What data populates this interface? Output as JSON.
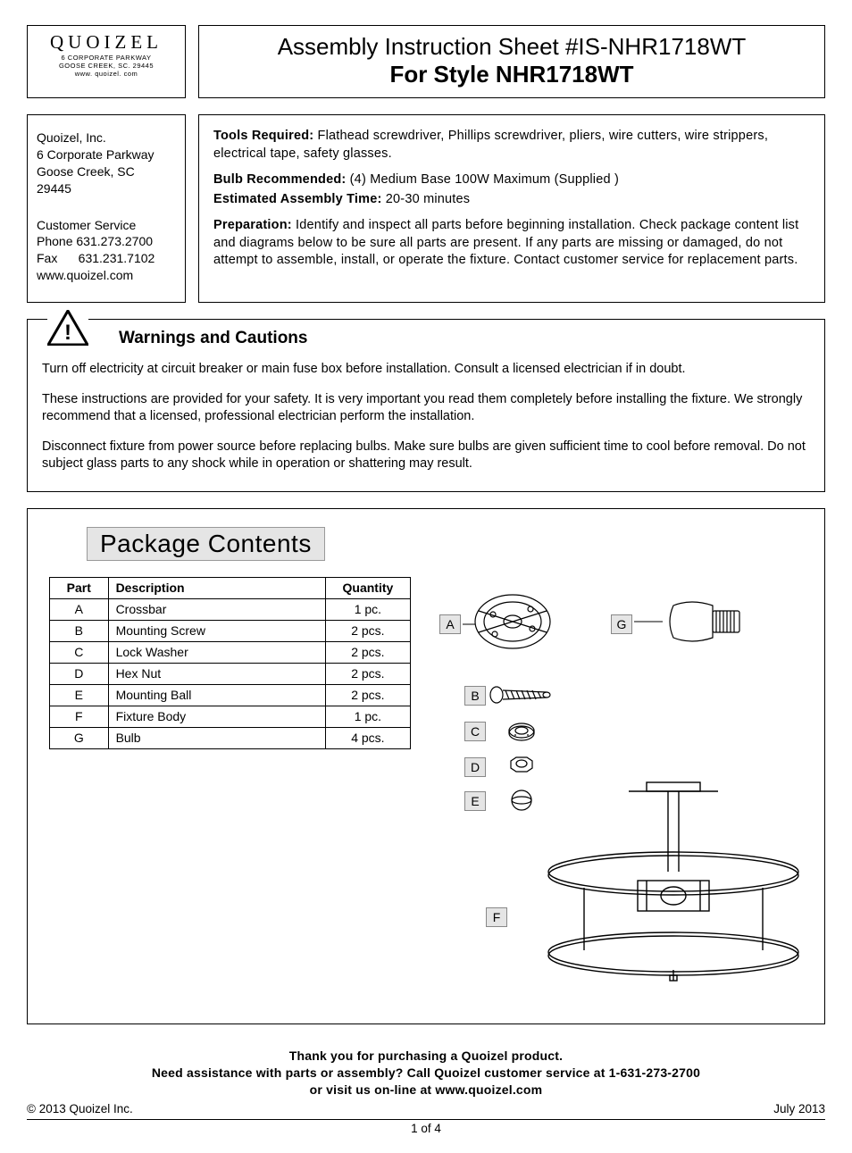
{
  "logo": {
    "brand": "QUOIZEL",
    "line1": "6 CORPORATE PARKWAY",
    "line2": "GOOSE CREEK, SC. 29445",
    "line3": "www. quoizel. com"
  },
  "title": {
    "line1": "Assembly Instruction Sheet #IS-NHR1718WT",
    "line2": "For Style NHR1718WT"
  },
  "address": {
    "company": "Quoizel, Inc.",
    "street": "6 Corporate Parkway",
    "city": "Goose Creek, SC",
    "zip": "29445",
    "cs_label": "Customer  Service",
    "phone": "Phone  631.273.2700",
    "fax": "Fax      631.231.7102",
    "web": "www.quoizel.com"
  },
  "info": {
    "tools_label": "Tools Required: ",
    "tools_text": "Flathead screwdriver, Phillips screwdriver, pliers, wire cutters, wire strippers, electrical tape, safety glasses.",
    "bulb_label": "Bulb Recommended:  ",
    "bulb_text": "(4) Medium Base 100W Maximum (Supplied )",
    "time_label": "Estimated Assembly Time: ",
    "time_text": "20-30 minutes",
    "prep_label": "Preparation: ",
    "prep_text": "Identify and inspect all parts before beginning installation. Check package content list and diagrams below to be sure all parts are present. If any parts are missing or damaged, do not attempt to assemble, install, or operate the fixture. Contact customer service for replacement parts."
  },
  "warnings": {
    "title": "Warnings and Cautions",
    "p1": "Turn off electricity at circuit breaker or main fuse box before installation. Consult a licensed electrician if in doubt.",
    "p2": "These instructions are provided for your safety. It is very important you read them completely before installing the fixture. We strongly recommend that a licensed, professional electrician perform the installation.",
    "p3": "Disconnect fixture from power source before replacing bulbs. Make sure bulbs are given sufficient time to cool before removal. Do not subject glass parts to any shock while in operation or shattering may result."
  },
  "package": {
    "title": "Package Contents",
    "headers": {
      "part": "Part",
      "desc": "Description",
      "qty": "Quantity"
    },
    "rows": [
      {
        "part": "A",
        "desc": "Crossbar",
        "qty": "1 pc."
      },
      {
        "part": "B",
        "desc": "Mounting Screw",
        "qty": "2 pcs."
      },
      {
        "part": "C",
        "desc": "Lock Washer",
        "qty": "2 pcs."
      },
      {
        "part": "D",
        "desc": "Hex Nut",
        "qty": "2 pcs."
      },
      {
        "part": "E",
        "desc": "Mounting Ball",
        "qty": "2 pcs."
      },
      {
        "part": "F",
        "desc": "Fixture Body",
        "qty": "1 pc."
      },
      {
        "part": "G",
        "desc": "Bulb",
        "qty": "4 pcs."
      }
    ],
    "diagram_labels": {
      "A": "A",
      "B": "B",
      "C": "C",
      "D": "D",
      "E": "E",
      "F": "F",
      "G": "G"
    }
  },
  "footer": {
    "thanks": "Thank you for purchasing a Quoizel product.",
    "help": "Need assistance with parts or assembly? Call Quoizel customer service at 1-631-273-2700",
    "visit": "or visit us on-line at www.quoizel.com",
    "copyright": "© 2013  Quoizel Inc.",
    "date": "July 2013",
    "pagenum": "1 of 4"
  }
}
